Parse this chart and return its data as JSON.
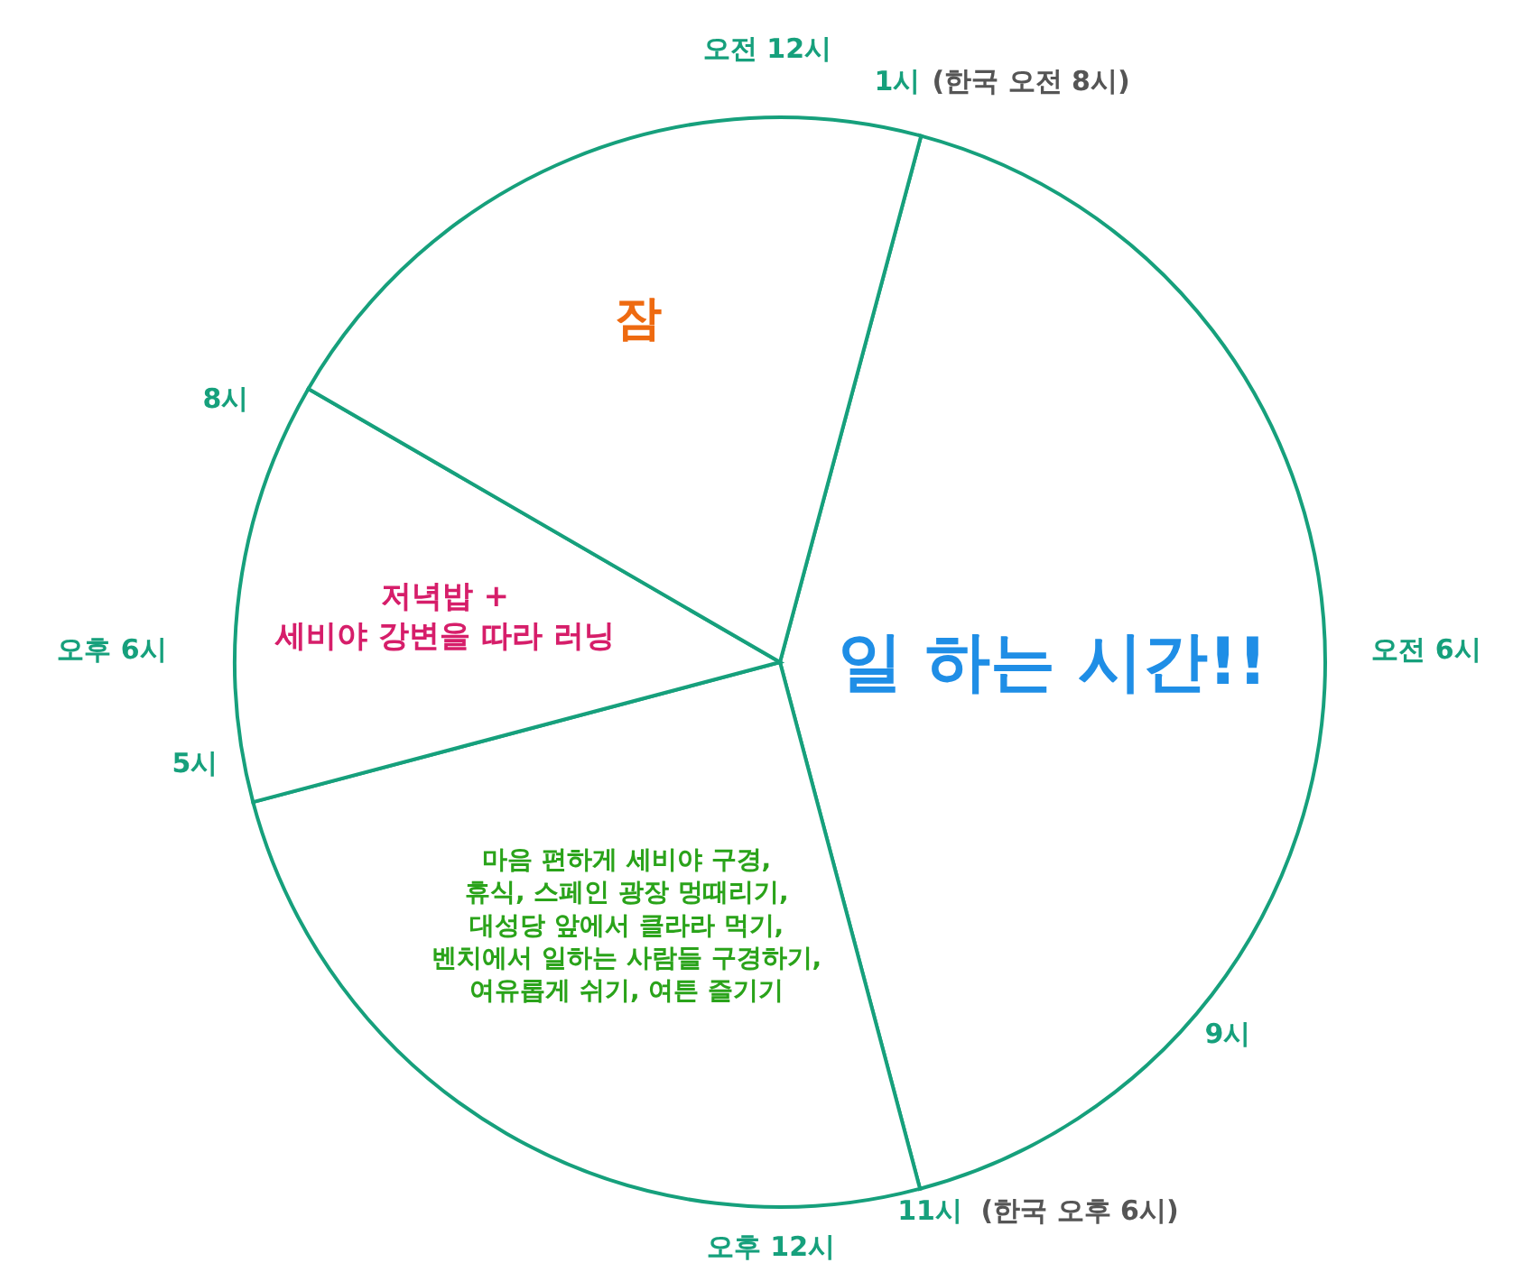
{
  "chart_data": {
    "type": "pie",
    "categories": [
      "일 하는 시간!!",
      "마음 편하게 세비야 구경,\n휴식, 스페인 광장 멍때리기,\n대성당 앞에서 클라라 먹기,\n벤치에서 일하는 사람들 구경하기,\n여유롭게 쉬기, 여튼 즐기기",
      "저녁밥 +\n세비야 강변을 따라 러닝",
      "잠"
    ],
    "values": [
      41.7,
      25,
      12.5,
      20.8
    ],
    "colors": [
      "#ffffff",
      "#ffffff",
      "#ffffff",
      "#ffffff"
    ],
    "annotations": [
      "오전 12시",
      "1시",
      "(한국 오전 8시)",
      "오전 6시",
      "9시",
      "11시",
      "(한국 오후 6시)",
      "오후 12시",
      "5시",
      "오후 6시",
      "8시"
    ]
  }
}
